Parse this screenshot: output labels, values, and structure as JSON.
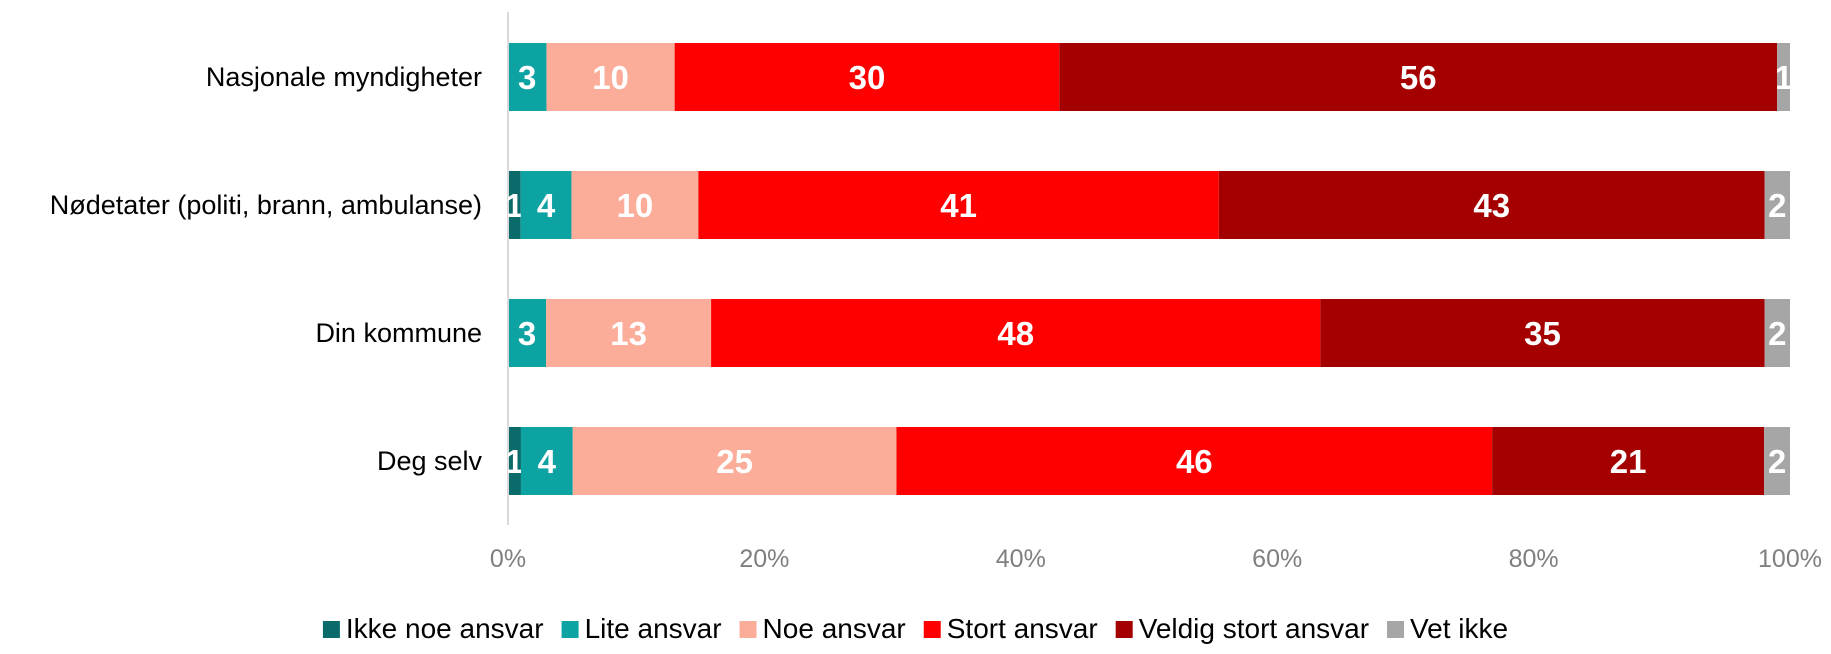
{
  "chart_data": {
    "type": "bar",
    "orientation": "horizontal",
    "stacked": true,
    "title": "",
    "xlabel": "",
    "ylabel": "",
    "xlim": [
      0,
      100
    ],
    "x_ticks": [
      "0%",
      "20%",
      "40%",
      "60%",
      "80%",
      "100%"
    ],
    "categories": [
      "Nasjonale myndigheter",
      "Nødetater (politi, brann, ambulanse)",
      "Din kommune",
      "Deg selv"
    ],
    "series": [
      {
        "name": "Ikke noe ansvar",
        "color": "#0b6b6b",
        "values": [
          0,
          1,
          0,
          1
        ]
      },
      {
        "name": "Lite ansvar",
        "color": "#0ea3a3",
        "values": [
          3,
          4,
          3,
          4
        ]
      },
      {
        "name": "Noe ansvar",
        "color": "#fbad9a",
        "values": [
          10,
          10,
          13,
          25
        ]
      },
      {
        "name": "Stort ansvar",
        "color": "#ff0000",
        "values": [
          30,
          41,
          48,
          46
        ]
      },
      {
        "name": "Veldig stort ansvar",
        "color": "#a50000",
        "values": [
          56,
          43,
          35,
          21
        ]
      },
      {
        "name": "Vet ikke",
        "color": "#a6a6a6",
        "values": [
          1,
          2,
          2,
          2
        ]
      }
    ],
    "legend_position": "bottom",
    "grid": false
  }
}
